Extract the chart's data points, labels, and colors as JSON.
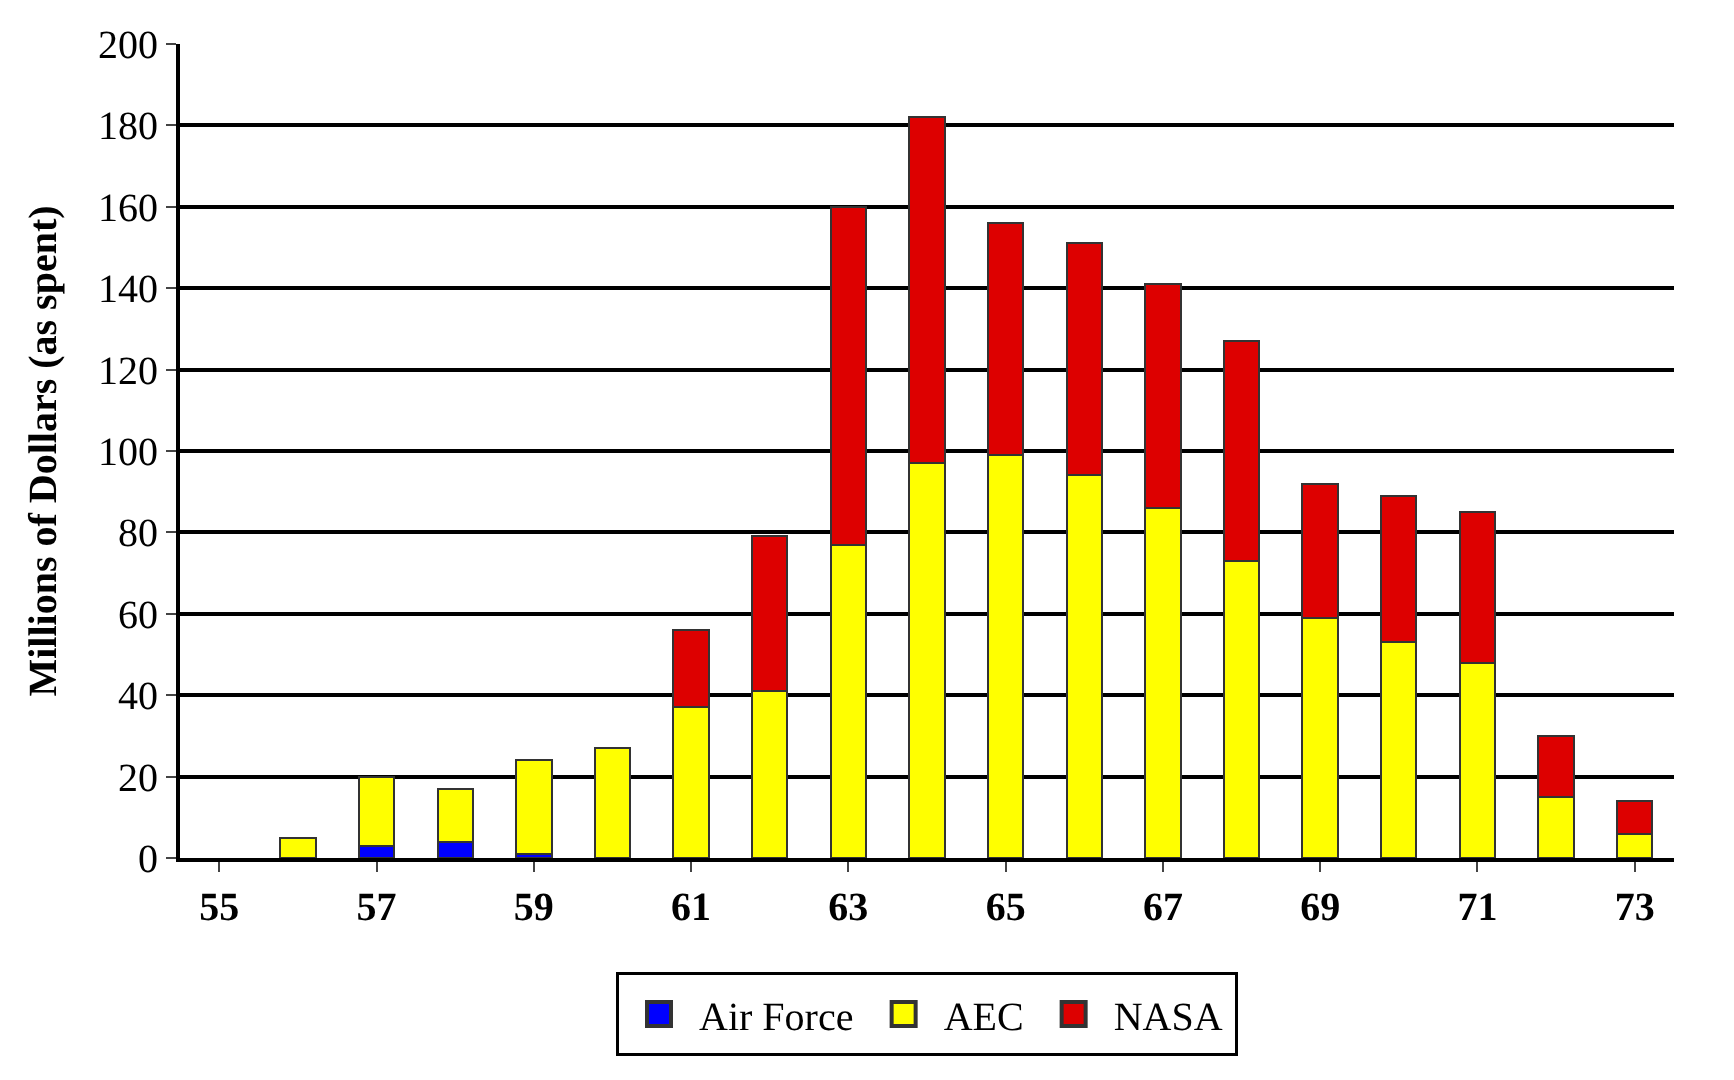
{
  "chart_data": {
    "type": "bar",
    "stacked": true,
    "ylabel": "Millions of Dollars (as spent)",
    "categories": [
      "55",
      null,
      "57",
      null,
      "59",
      null,
      "61",
      null,
      "63",
      null,
      "65",
      null,
      "67",
      null,
      "69",
      null,
      "71",
      null,
      "73"
    ],
    "series": [
      {
        "name": "Air Force",
        "color": "#0000ff",
        "values": [
          null,
          null,
          3,
          4,
          1,
          null,
          null,
          null,
          null,
          null,
          null,
          null,
          null,
          null,
          null,
          null,
          null,
          null,
          null
        ]
      },
      {
        "name": "AEC",
        "color": "#ffff00",
        "values": [
          null,
          5,
          17,
          13,
          23,
          27,
          37,
          41,
          77,
          97,
          99,
          94,
          86,
          73,
          59,
          53,
          48,
          15,
          6
        ]
      },
      {
        "name": "NASA",
        "color": "#dd0000",
        "values": [
          null,
          null,
          null,
          null,
          null,
          null,
          19,
          38,
          83,
          85,
          57,
          57,
          55,
          54,
          33,
          36,
          37,
          15,
          8
        ]
      }
    ],
    "ylim": [
      0,
      200
    ],
    "yticks": [
      0,
      20,
      40,
      60,
      80,
      100,
      120,
      140,
      160,
      180,
      200
    ],
    "grid": "y",
    "legend": "bottom"
  }
}
